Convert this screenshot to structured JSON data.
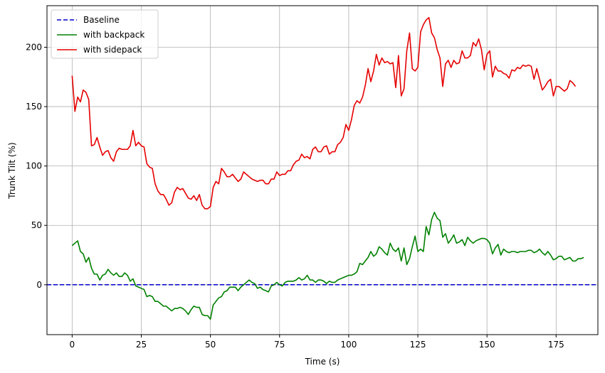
{
  "chart_data": {
    "type": "line",
    "title": "",
    "xlabel": "Time (s)",
    "ylabel": "Trunk Tilt (%)",
    "xlim": [
      -9.1,
      190.1
    ],
    "ylim": [
      -42,
      235
    ],
    "xticks": [
      0,
      25,
      50,
      75,
      100,
      125,
      150,
      175
    ],
    "yticks": [
      0,
      50,
      100,
      150,
      200
    ],
    "grid": true,
    "legend_position": "upper-left",
    "baseline": {
      "name": "Baseline",
      "value": 0,
      "color": "#0000cc",
      "style": "dashed"
    },
    "series": [
      {
        "name": "with backpack",
        "color": "#008000",
        "x_start": 0,
        "x_step": 1,
        "values": [
          33,
          35,
          37,
          28,
          26,
          19,
          23,
          14,
          9,
          9,
          4,
          8,
          9,
          13,
          10,
          8,
          10,
          7,
          7,
          10,
          8,
          3,
          5,
          -1,
          -2,
          -3,
          -4,
          -10,
          -9,
          -10,
          -14,
          -14,
          -16,
          -18,
          -18,
          -20,
          -22,
          -20,
          -20,
          -19,
          -20,
          -22,
          -25,
          -21,
          -18,
          -19,
          -19,
          -25,
          -26,
          -26,
          -29,
          -17,
          -14,
          -11,
          -10,
          -6,
          -5,
          -2,
          -2,
          -2,
          -5,
          -2,
          0,
          2,
          4,
          2,
          1,
          -3,
          -2,
          -4,
          -5,
          -6,
          -1,
          0,
          2,
          0,
          -1,
          2,
          3,
          3,
          3,
          4,
          6,
          4,
          5,
          8,
          4,
          4,
          2,
          4,
          4,
          3,
          1,
          3,
          2,
          2,
          4,
          5,
          6,
          7,
          8,
          8,
          9,
          11,
          18,
          17,
          20,
          23,
          28,
          24,
          26,
          32,
          30,
          27,
          25,
          35,
          30,
          28,
          31,
          20,
          31,
          17,
          22,
          32,
          41,
          28,
          30,
          28,
          49,
          42,
          55,
          61,
          56,
          54,
          40,
          43,
          35,
          38,
          42,
          35,
          36,
          38,
          33,
          40,
          37,
          35,
          37,
          38,
          39,
          39,
          38,
          35,
          26,
          31,
          34,
          25,
          30,
          28,
          27,
          28,
          28,
          27,
          28,
          28,
          28,
          29,
          29,
          27,
          28,
          30,
          27,
          25,
          28,
          25,
          21,
          22,
          24,
          24,
          21,
          22,
          23,
          20,
          20,
          22,
          22,
          23
        ]
      },
      {
        "name": "with sidepack",
        "color": "#e60000",
        "x_start": 0,
        "x_step": 1,
        "values": [
          176,
          146,
          158,
          154,
          164,
          162,
          156,
          117,
          118,
          124,
          116,
          109,
          112,
          113,
          107,
          104,
          112,
          115,
          114,
          114,
          114,
          117,
          130,
          117,
          120,
          117,
          116,
          102,
          99,
          98,
          85,
          79,
          76,
          76,
          72,
          67,
          69,
          78,
          82,
          80,
          81,
          77,
          73,
          72,
          75,
          71,
          76,
          67,
          64,
          64,
          66,
          82,
          87,
          85,
          98,
          95,
          91,
          91,
          93,
          90,
          87,
          89,
          95,
          93,
          91,
          89,
          88,
          87,
          88,
          88,
          85,
          85,
          89,
          89,
          95,
          92,
          93,
          93,
          96,
          96,
          101,
          104,
          105,
          110,
          107,
          108,
          106,
          114,
          116,
          112,
          112,
          116,
          117,
          110,
          112,
          112,
          118,
          120,
          124,
          135,
          130,
          139,
          151,
          155,
          153,
          158,
          168,
          182,
          171,
          180,
          194,
          185,
          191,
          187,
          188,
          186,
          187,
          166,
          193,
          159,
          165,
          197,
          212,
          182,
          180,
          183,
          213,
          219,
          223,
          225,
          212,
          208,
          198,
          191,
          167,
          186,
          189,
          183,
          189,
          186,
          187,
          197,
          191,
          191,
          193,
          204,
          201,
          207,
          198,
          181,
          194,
          197,
          175,
          184,
          180,
          180,
          178,
          177,
          174,
          181,
          180,
          183,
          182,
          185,
          184,
          185,
          184,
          173,
          182,
          173,
          164,
          167,
          171,
          173,
          159,
          167,
          167,
          165,
          163,
          165,
          172,
          170,
          167
        ]
      }
    ]
  }
}
